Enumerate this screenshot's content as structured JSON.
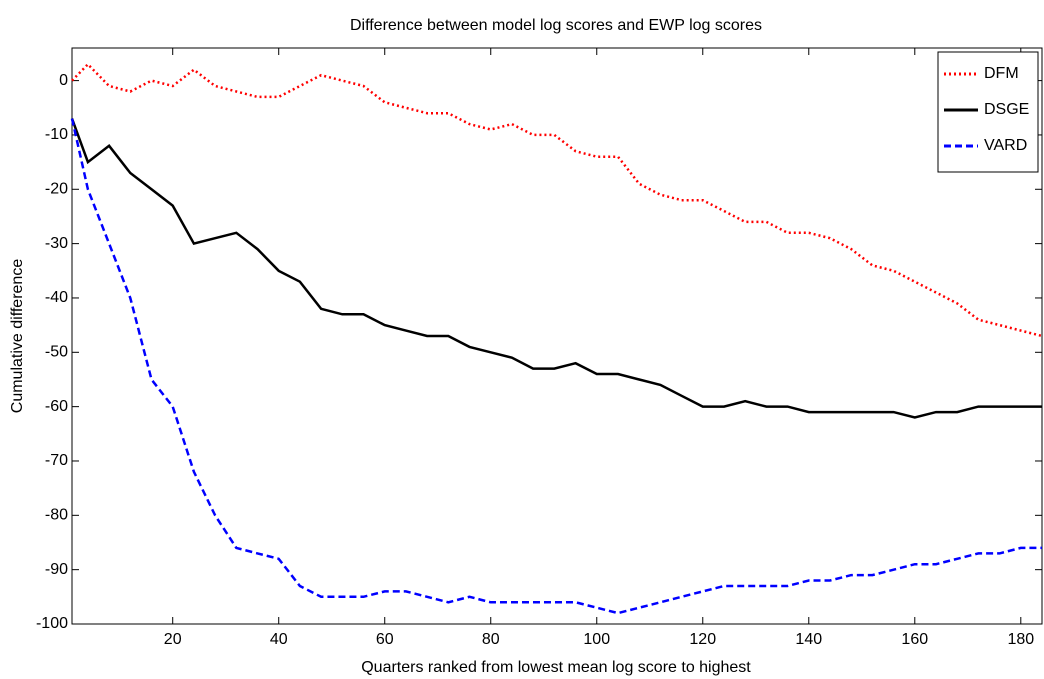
{
  "chart_data": {
    "type": "line",
    "title": "Difference between model log scores and EWP log scores",
    "x_label": "Quarters ranked from lowest mean log score to highest",
    "y_label": "Cumulative difference",
    "x": [
      1,
      4,
      8,
      12,
      16,
      20,
      24,
      28,
      32,
      36,
      40,
      44,
      48,
      52,
      56,
      60,
      64,
      68,
      72,
      76,
      80,
      84,
      88,
      92,
      96,
      100,
      104,
      108,
      112,
      116,
      120,
      124,
      128,
      132,
      136,
      140,
      144,
      148,
      152,
      156,
      160,
      164,
      168,
      172,
      176,
      180,
      184
    ],
    "series": [
      {
        "name": "DFM",
        "color": "#ff0000",
        "style": "dotted",
        "values": [
          0,
          3,
          -1,
          -2,
          0,
          -1,
          2,
          -1,
          -2,
          -3,
          -3,
          -1,
          1,
          0,
          -1,
          -4,
          -5,
          -6,
          -6,
          -8,
          -9,
          -8,
          -10,
          -10,
          -13,
          -14,
          -14,
          -19,
          -21,
          -22,
          -22,
          -24,
          -26,
          -26,
          -28,
          -28,
          -29,
          -31,
          -34,
          -35,
          -37,
          -39,
          -41,
          -44,
          -45,
          -46,
          -47
        ]
      },
      {
        "name": "DSGE",
        "color": "#000000",
        "style": "solid",
        "values": [
          -7,
          -15,
          -12,
          -17,
          -20,
          -23,
          -30,
          -29,
          -28,
          -31,
          -35,
          -37,
          -42,
          -43,
          -43,
          -45,
          -46,
          -47,
          -47,
          -49,
          -50,
          -51,
          -53,
          -53,
          -52,
          -54,
          -54,
          -55,
          -56,
          -58,
          -60,
          -60,
          -59,
          -60,
          -60,
          -61,
          -61,
          -61,
          -61,
          -61,
          -62,
          -61,
          -61,
          -60,
          -60,
          -60,
          -60
        ]
      },
      {
        "name": "VARD",
        "color": "#0000ff",
        "style": "dashed",
        "values": [
          -7,
          -20,
          -30,
          -40,
          -55,
          -60,
          -72,
          -80,
          -86,
          -87,
          -88,
          -93,
          -95,
          -95,
          -95,
          -94,
          -94,
          -95,
          -96,
          -95,
          -96,
          -96,
          -96,
          -96,
          -96,
          -97,
          -98,
          -97,
          -96,
          -95,
          -94,
          -93,
          -93,
          -93,
          -93,
          -92,
          -92,
          -91,
          -91,
          -90,
          -89,
          -89,
          -88,
          -87,
          -87,
          -86,
          -86
        ]
      }
    ],
    "xlim": [
      1,
      184
    ],
    "ylim": [
      -100,
      6
    ],
    "xticks": [
      20,
      40,
      60,
      80,
      100,
      120,
      140,
      160,
      180
    ],
    "yticks": [
      0,
      -10,
      -20,
      -30,
      -40,
      -50,
      -60,
      -70,
      -80,
      -90,
      -100
    ],
    "legend": "upper right"
  }
}
